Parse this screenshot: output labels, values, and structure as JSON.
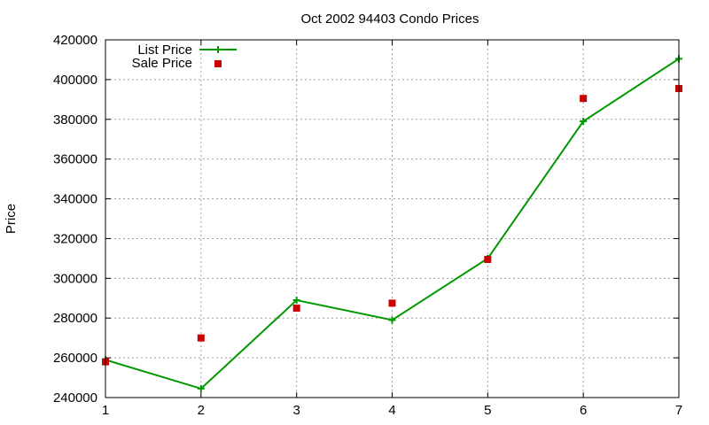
{
  "chart_data": {
    "type": "line",
    "title": "Oct 2002 94403 Condo Prices",
    "xlabel": "",
    "ylabel": "Price",
    "xlim": [
      1,
      7
    ],
    "ylim": [
      240000,
      420000
    ],
    "x_ticks": [
      "1",
      "2",
      "3",
      "4",
      "5",
      "6",
      "7"
    ],
    "y_ticks": [
      "240000",
      "260000",
      "280000",
      "300000",
      "320000",
      "340000",
      "360000",
      "380000",
      "400000",
      "420000"
    ],
    "grid": true,
    "legend_position": "top-left",
    "series": [
      {
        "name": "List Price",
        "style": "line-with-plus-markers",
        "color": "#009900",
        "x": [
          1,
          2,
          3,
          4,
          5,
          6,
          7
        ],
        "values": [
          259000,
          244500,
          289000,
          279000,
          310000,
          379000,
          410500
        ]
      },
      {
        "name": "Sale Price",
        "style": "square-markers",
        "color": "#cc0000",
        "x": [
          1,
          2,
          3,
          4,
          5,
          6,
          7
        ],
        "values": [
          258000,
          270000,
          285000,
          287500,
          309500,
          390500,
          395500
        ]
      }
    ]
  }
}
